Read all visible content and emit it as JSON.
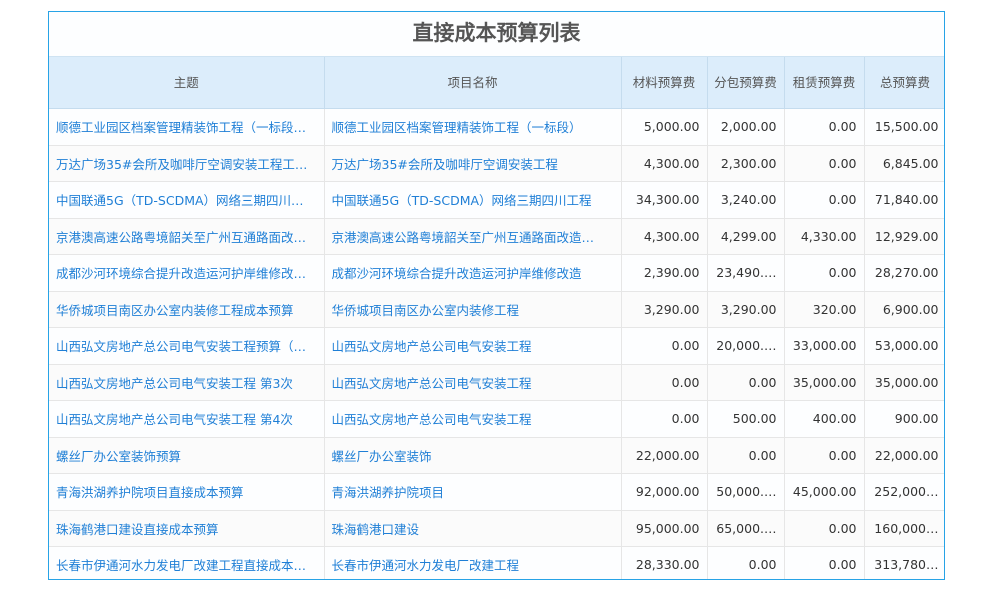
{
  "title": "直接成本预算列表",
  "columns": [
    "主题",
    "项目名称",
    "材料预算费",
    "分包预算费",
    "租赁预算费",
    "总预算费"
  ],
  "rows": [
    [
      "顺德工业园区档案管理精装饰工程（一标段…",
      "顺德工业园区档案管理精装饰工程（一标段）",
      "5,000.00",
      "2,000.00",
      "0.00",
      "15,500.00"
    ],
    [
      "万达广场35#会所及咖啡厅空调安装工程工…",
      "万达广场35#会所及咖啡厅空调安装工程",
      "4,300.00",
      "2,300.00",
      "0.00",
      "6,845.00"
    ],
    [
      "中国联通5G（TD-SCDMA）网络三期四川…",
      "中国联通5G（TD-SCDMA）网络三期四川工程",
      "34,300.00",
      "3,240.00",
      "0.00",
      "71,840.00"
    ],
    [
      "京港澳高速公路粤境韶关至广州互通路面改…",
      "京港澳高速公路粤境韶关至广州互通路面改造…",
      "4,300.00",
      "4,299.00",
      "4,330.00",
      "12,929.00"
    ],
    [
      "成都沙河环境综合提升改造运河护岸维修改…",
      "成都沙河环境综合提升改造运河护岸维修改造",
      "2,390.00",
      "23,490.…",
      "0.00",
      "28,270.00"
    ],
    [
      "华侨城项目南区办公室内装修工程成本预算",
      "华侨城项目南区办公室内装修工程",
      "3,290.00",
      "3,290.00",
      "320.00",
      "6,900.00"
    ],
    [
      "山西弘文房地产总公司电气安装工程预算（…",
      "山西弘文房地产总公司电气安装工程",
      "0.00",
      "20,000.…",
      "33,000.00",
      "53,000.00"
    ],
    [
      "山西弘文房地产总公司电气安装工程 第3次",
      "山西弘文房地产总公司电气安装工程",
      "0.00",
      "0.00",
      "35,000.00",
      "35,000.00"
    ],
    [
      "山西弘文房地产总公司电气安装工程 第4次",
      "山西弘文房地产总公司电气安装工程",
      "0.00",
      "500.00",
      "400.00",
      "900.00"
    ],
    [
      "螺丝厂办公室装饰预算",
      "螺丝厂办公室装饰",
      "22,000.00",
      "0.00",
      "0.00",
      "22,000.00"
    ],
    [
      "青海洪湖养护院项目直接成本预算",
      "青海洪湖养护院项目",
      "92,000.00",
      "50,000.…",
      "45,000.00",
      "252,000…"
    ],
    [
      "珠海鹤港口建设直接成本预算",
      "珠海鹤港口建设",
      "95,000.00",
      "65,000.…",
      "0.00",
      "160,000…"
    ],
    [
      "长春市伊通河水力发电厂改建工程直接成本…",
      "长春市伊通河水力发电厂改建工程",
      "28,330.00",
      "0.00",
      "0.00",
      "313,780…"
    ]
  ],
  "colors": {
    "accent": "#27a3e6",
    "header_bg": "#dcedfb",
    "link": "#1f7fd6"
  }
}
